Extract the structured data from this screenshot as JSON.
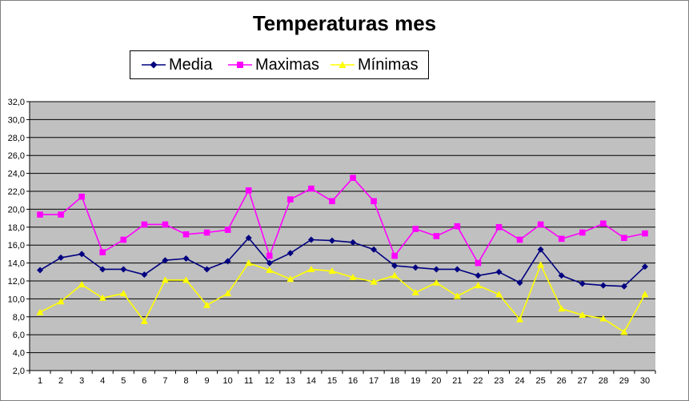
{
  "chart_data": {
    "type": "line",
    "title": "Temperaturas mes",
    "xlabel": "",
    "ylabel": "",
    "categories": [
      "1",
      "2",
      "3",
      "4",
      "5",
      "6",
      "7",
      "8",
      "9",
      "10",
      "11",
      "12",
      "13",
      "14",
      "15",
      "16",
      "17",
      "18",
      "19",
      "20",
      "21",
      "22",
      "23",
      "24",
      "25",
      "26",
      "27",
      "28",
      "29",
      "30"
    ],
    "ylim": [
      2.0,
      32.0
    ],
    "yticks": [
      "2,0",
      "4,0",
      "6,0",
      "8,0",
      "10,0",
      "12,0",
      "14,0",
      "16,0",
      "18,0",
      "20,0",
      "22,0",
      "24,0",
      "26,0",
      "28,0",
      "30,0",
      "32,0"
    ],
    "grid": true,
    "legend_position": "top",
    "plot_background": "#c0c0c0",
    "series": [
      {
        "name": "Media",
        "color": "#000080",
        "marker": "diamond",
        "values": [
          13.2,
          14.6,
          15.0,
          13.3,
          13.3,
          12.7,
          14.3,
          14.5,
          13.3,
          14.2,
          16.8,
          14.0,
          15.1,
          16.6,
          16.5,
          16.3,
          15.5,
          13.7,
          13.5,
          13.3,
          13.3,
          12.6,
          13.0,
          11.8,
          15.5,
          12.6,
          11.7,
          11.5,
          11.4,
          13.6
        ]
      },
      {
        "name": "Maximas",
        "color": "#ff00ff",
        "marker": "square",
        "values": [
          19.4,
          19.4,
          21.4,
          15.2,
          16.6,
          18.3,
          18.3,
          17.2,
          17.4,
          17.7,
          22.1,
          14.8,
          21.1,
          22.3,
          20.9,
          23.5,
          20.9,
          14.8,
          17.8,
          17.0,
          18.1,
          14.0,
          18.0,
          16.6,
          18.3,
          16.7,
          17.4,
          18.4,
          16.8,
          17.3
        ]
      },
      {
        "name": "Mínimas",
        "color": "#ffff00",
        "marker": "triangle",
        "values": [
          8.5,
          9.7,
          11.6,
          10.1,
          10.6,
          7.5,
          12.1,
          12.1,
          9.3,
          10.6,
          14.0,
          13.2,
          12.2,
          13.3,
          13.1,
          12.4,
          11.9,
          12.6,
          10.7,
          11.8,
          10.3,
          11.5,
          10.5,
          7.7,
          13.8,
          8.9,
          8.2,
          7.8,
          6.3,
          10.5
        ]
      }
    ]
  }
}
